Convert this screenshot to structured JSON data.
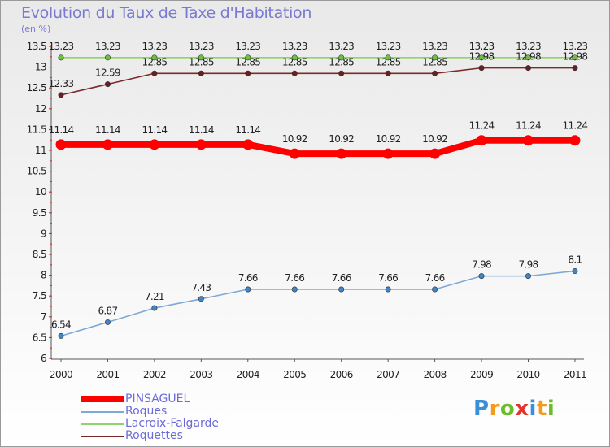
{
  "header": {
    "title": "Evolution du Taux de Taxe d'Habitation",
    "unit": "(en %)"
  },
  "logo": {
    "text": "Proxiti",
    "letters": [
      {
        "ch": "P",
        "color": "#3b8fd9"
      },
      {
        "ch": "r",
        "color": "#f39b1e"
      },
      {
        "ch": "o",
        "color": "#6cbd2a"
      },
      {
        "ch": "x",
        "color": "#e5322d"
      },
      {
        "ch": "i",
        "color": "#3b8fd9"
      },
      {
        "ch": "t",
        "color": "#f39b1e"
      },
      {
        "ch": "i",
        "color": "#6cbd2a"
      }
    ]
  },
  "chart_data": {
    "type": "line",
    "title": "Evolution du Taux de Taxe d'Habitation",
    "ylabel": "(en %)",
    "xlabel": "",
    "ylim": [
      6,
      13.5
    ],
    "ytick_step": 0.5,
    "grid": false,
    "legend_position": "bottom-left",
    "categories": [
      "2000",
      "2001",
      "2002",
      "2003",
      "2004",
      "2005",
      "2006",
      "2007",
      "2008",
      "2009",
      "2010",
      "2011"
    ],
    "series": [
      {
        "name": "Lacroix-Falgarde",
        "color": "#8fd46a",
        "point_color": "#6cc23c",
        "labels": [
          "13.23",
          "13.23",
          "13.23",
          "13.23",
          "13.23",
          "13.23",
          "13.23",
          "13.23",
          "13.23",
          "13.23",
          "13.23",
          "13.23"
        ],
        "values": [
          13.23,
          13.23,
          13.23,
          13.23,
          13.23,
          13.23,
          13.23,
          13.23,
          13.23,
          13.23,
          13.23,
          13.23
        ]
      },
      {
        "name": "Roquettes",
        "color": "#7a2a2a",
        "point_color": "#6b1f24",
        "labels": [
          "12.33",
          "12.59",
          "12.85",
          "12.85",
          "12.85",
          "12.85",
          "12.85",
          "12.85",
          "12.85",
          "12.98",
          "12.98",
          "12.98"
        ],
        "values": [
          12.33,
          12.59,
          12.85,
          12.85,
          12.85,
          12.85,
          12.85,
          12.85,
          12.85,
          12.98,
          12.98,
          12.98
        ]
      },
      {
        "name": "PINSAGUEL",
        "color": "#ff0000",
        "point_color": "#ff0000",
        "labels": [
          "11.14",
          "11.14",
          "11.14",
          "11.14",
          "11.14",
          "10.92",
          "10.92",
          "10.92",
          "10.92",
          "11.24",
          "11.24",
          "11.24"
        ],
        "values": [
          11.14,
          11.14,
          11.14,
          11.14,
          11.14,
          10.92,
          10.92,
          10.92,
          10.92,
          11.24,
          11.24,
          11.24
        ]
      },
      {
        "name": "Roques",
        "color": "#7ea8d6",
        "point_color": "#3f86c8",
        "labels": [
          "6.54",
          "6.87",
          "7.21",
          "7.43",
          "7.66",
          "7.66",
          "7.66",
          "7.66",
          "7.66",
          "7.98",
          "7.98",
          "8.1"
        ],
        "values": [
          6.54,
          6.87,
          7.21,
          7.43,
          7.66,
          7.66,
          7.66,
          7.66,
          7.66,
          7.98,
          7.98,
          8.1
        ]
      }
    ],
    "legend": [
      {
        "name": "PINSAGUEL",
        "color": "#ff0000"
      },
      {
        "name": "Roques",
        "color": "#7ea8d6"
      },
      {
        "name": "Lacroix-Falgarde",
        "color": "#8fd46a"
      },
      {
        "name": "Roquettes",
        "color": "#7a2a2a"
      }
    ]
  }
}
